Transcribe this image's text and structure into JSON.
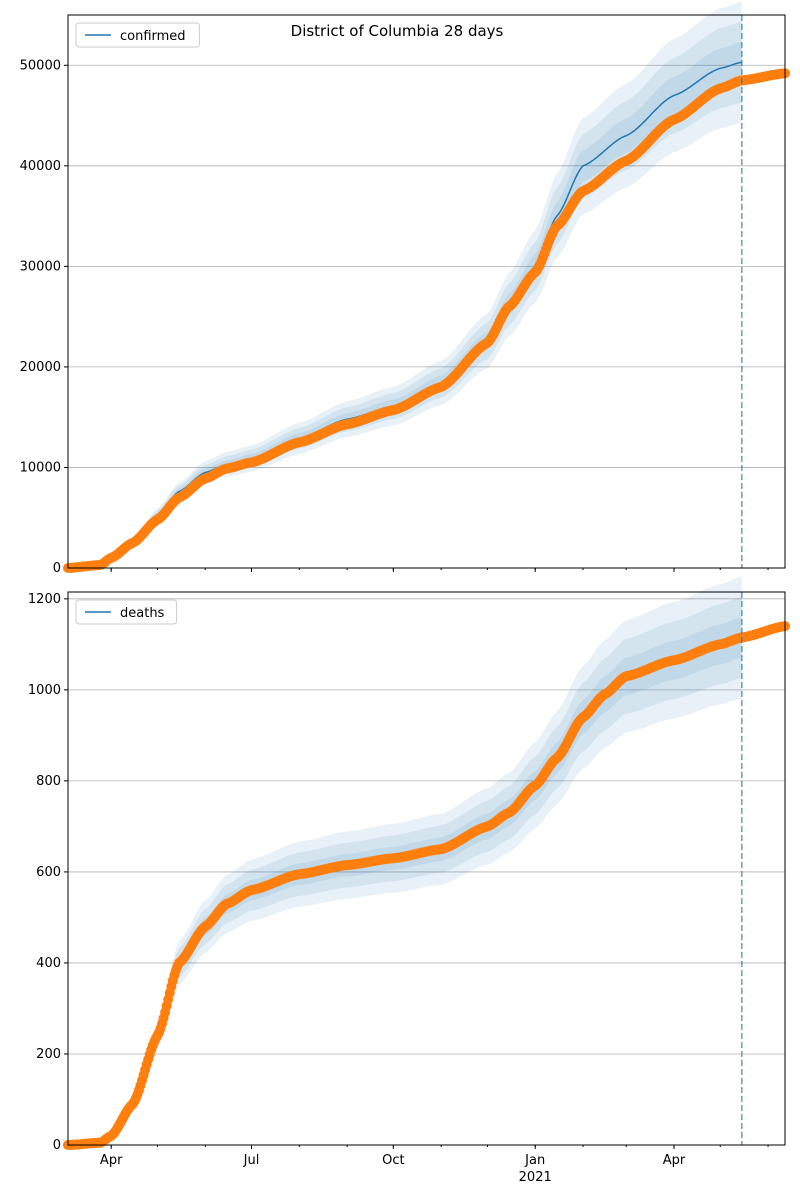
{
  "chart_data": [
    {
      "type": "line",
      "title": "District of Columbia 28 days",
      "legend": {
        "label": "confirmed",
        "placement": "top-left"
      },
      "ylim": [
        0,
        55000
      ],
      "yticks": [
        0,
        10000,
        20000,
        30000,
        40000,
        50000
      ],
      "grid": "y",
      "forecast_date": "2021-05-15",
      "observed": {
        "dates": [
          "2020-03-04",
          "2020-03-25",
          "2020-04-01",
          "2020-04-15",
          "2020-05-01",
          "2020-05-15",
          "2020-06-01",
          "2020-06-15",
          "2020-07-01",
          "2020-08-01",
          "2020-09-01",
          "2020-10-01",
          "2020-11-01",
          "2020-12-01",
          "2020-12-15",
          "2021-01-01",
          "2021-01-15",
          "2021-02-01",
          "2021-03-01",
          "2021-04-01",
          "2021-05-01",
          "2021-05-15",
          "2021-06-12"
        ],
        "values": [
          0,
          300,
          1000,
          2500,
          4800,
          7000,
          8900,
          9900,
          10500,
          12500,
          14300,
          15700,
          18000,
          22400,
          26000,
          29400,
          34000,
          37500,
          40500,
          44600,
          47700,
          48500,
          49200
        ]
      },
      "model": {
        "dates": [
          "2020-03-04",
          "2020-03-25",
          "2020-04-01",
          "2020-04-15",
          "2020-05-01",
          "2020-05-15",
          "2020-06-01",
          "2020-06-15",
          "2020-07-01",
          "2020-08-01",
          "2020-09-01",
          "2020-10-01",
          "2020-11-01",
          "2020-12-01",
          "2020-12-15",
          "2021-01-01",
          "2021-01-15",
          "2021-02-01",
          "2021-03-01",
          "2021-04-01",
          "2021-05-01",
          "2021-05-15"
        ],
        "values": [
          0,
          300,
          1000,
          2700,
          5300,
          7600,
          9500,
          10300,
          10900,
          12900,
          14800,
          16100,
          18400,
          22600,
          26200,
          30000,
          35000,
          40000,
          43000,
          47000,
          49700,
          50300
        ]
      }
    },
    {
      "type": "line",
      "legend": {
        "label": "deaths",
        "placement": "top-left"
      },
      "ylim": [
        0,
        1215
      ],
      "yticks": [
        0,
        200,
        400,
        600,
        800,
        1000,
        1200
      ],
      "grid": "y",
      "forecast_date": "2021-05-15",
      "observed": {
        "dates": [
          "2020-03-04",
          "2020-03-25",
          "2020-04-01",
          "2020-04-15",
          "2020-05-01",
          "2020-05-15",
          "2020-06-01",
          "2020-06-15",
          "2020-07-01",
          "2020-08-01",
          "2020-09-01",
          "2020-10-01",
          "2020-11-01",
          "2020-12-01",
          "2020-12-15",
          "2021-01-01",
          "2021-01-15",
          "2021-02-01",
          "2021-02-15",
          "2021-03-01",
          "2021-04-01",
          "2021-05-01",
          "2021-05-15",
          "2021-06-12"
        ],
        "values": [
          0,
          5,
          20,
          90,
          240,
          400,
          480,
          530,
          560,
          595,
          615,
          630,
          650,
          700,
          730,
          790,
          850,
          940,
          990,
          1030,
          1065,
          1100,
          1115,
          1140
        ]
      },
      "model": {
        "dates": [
          "2020-03-04",
          "2020-03-25",
          "2020-04-01",
          "2020-04-15",
          "2020-05-01",
          "2020-05-15",
          "2020-06-01",
          "2020-06-15",
          "2020-07-01",
          "2020-08-01",
          "2020-09-01",
          "2020-10-01",
          "2020-11-01",
          "2020-12-01",
          "2020-12-15",
          "2021-01-01",
          "2021-01-15",
          "2021-02-01",
          "2021-02-15",
          "2021-03-01",
          "2021-04-01",
          "2021-05-01",
          "2021-05-15"
        ],
        "values": [
          0,
          5,
          20,
          90,
          240,
          400,
          480,
          530,
          560,
          595,
          615,
          630,
          650,
          700,
          730,
          790,
          850,
          940,
          990,
          1030,
          1065,
          1100,
          1115
        ]
      }
    }
  ],
  "xticks": [
    {
      "date": "2020-04-01",
      "label": "Apr"
    },
    {
      "date": "2020-07-01",
      "label": "Jul"
    },
    {
      "date": "2020-10-01",
      "label": "Oct"
    },
    {
      "date": "2021-01-01",
      "label": "Jan",
      "sublabel": "2021"
    },
    {
      "date": "2021-04-01",
      "label": "Apr"
    }
  ],
  "xrange": [
    "2020-03-04",
    "2021-06-12"
  ],
  "colors": {
    "model": "#1f77b4",
    "observed": "#ff7f0e",
    "grid": "#b0b0b0"
  }
}
